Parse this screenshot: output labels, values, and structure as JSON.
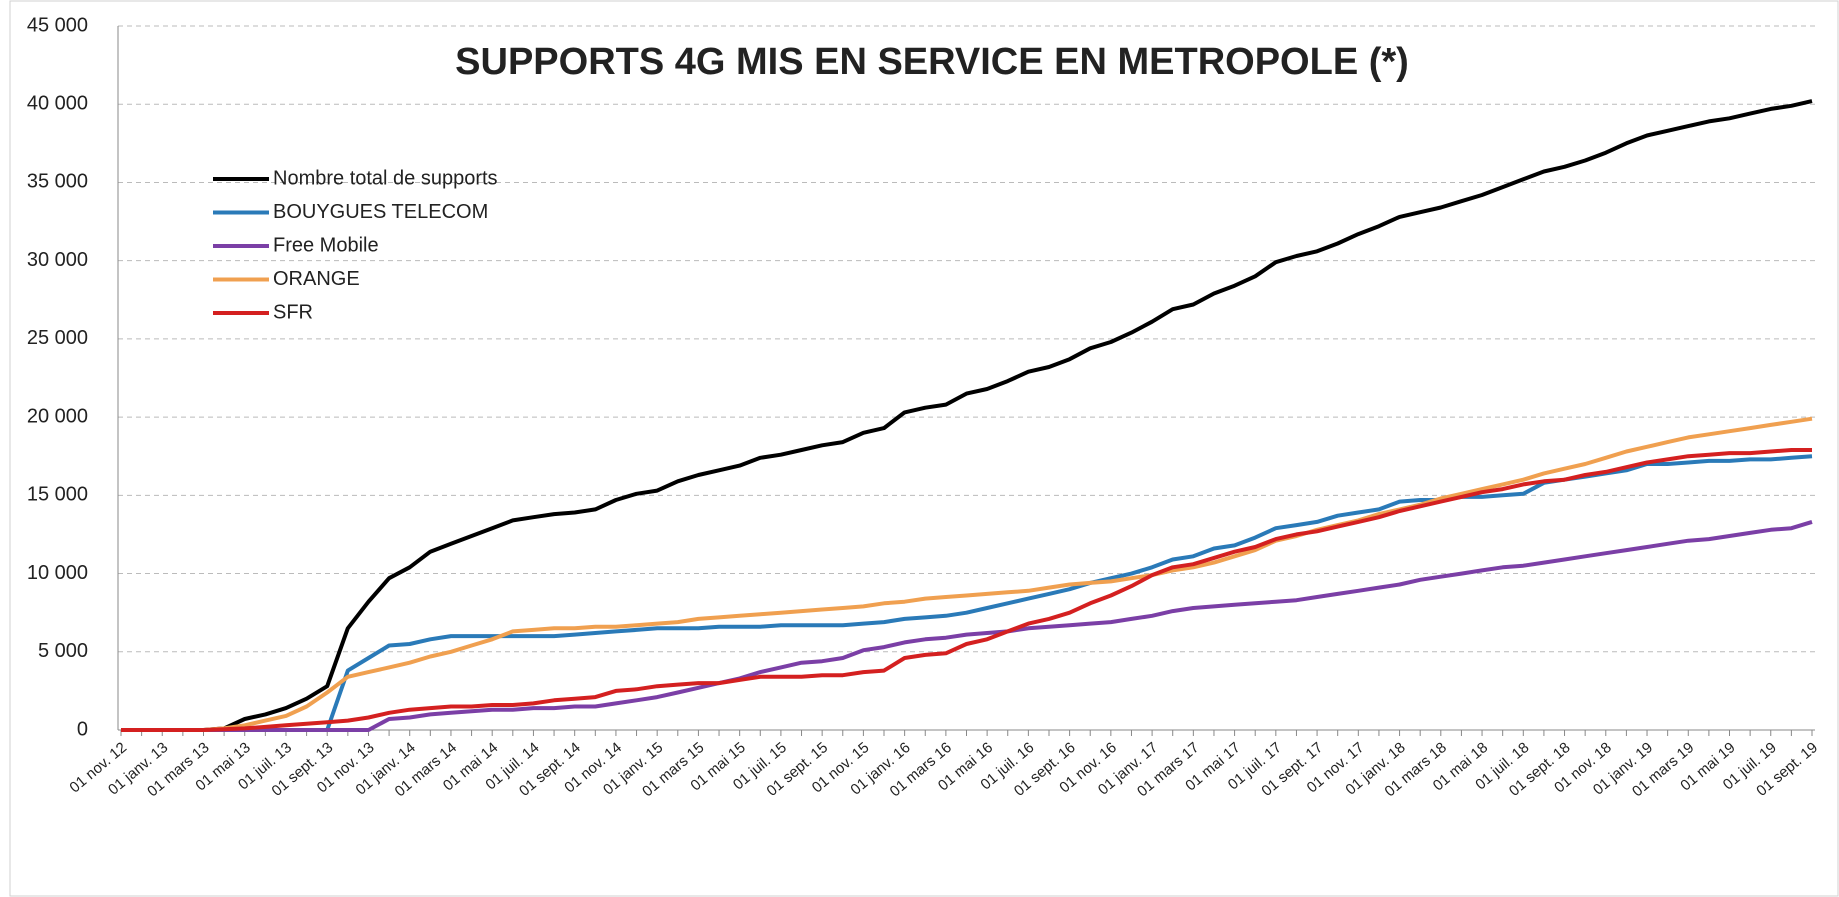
{
  "chart_data": {
    "type": "line",
    "title": "SUPPORTS 4G MIS EN SERVICE EN METROPOLE (*)",
    "categories": [
      "01 nov. 12",
      null,
      "01 janv. 13",
      null,
      "01 mars 13",
      null,
      "01 mai 13",
      null,
      "01 juil. 13",
      null,
      "01 sept. 13",
      null,
      "01 nov. 13",
      null,
      "01 janv. 14",
      null,
      "01 mars 14",
      null,
      "01 mai 14",
      null,
      "01 juil. 14",
      null,
      "01 sept. 14",
      null,
      "01 nov. 14",
      null,
      "01 janv. 15",
      null,
      "01 mars 15",
      null,
      "01 mai 15",
      null,
      "01 juil. 15",
      null,
      "01 sept. 15",
      null,
      "01 nov. 15",
      null,
      "01 janv. 16",
      null,
      "01 mars 16",
      null,
      "01 mai 16",
      null,
      "01 juil. 16",
      null,
      "01 sept. 16",
      null,
      "01 nov. 16",
      null,
      "01 janv. 17",
      null,
      "01 mars 17",
      null,
      "01 mai 17",
      null,
      "01 juil. 17",
      null,
      "01 sept. 17",
      null,
      "01 nov. 17",
      null,
      "01 janv. 18",
      null,
      "01 mars 18",
      null,
      "01 mai 18",
      null,
      "01 juil. 18",
      null,
      "01 sept. 18",
      null,
      "01 nov. 18",
      null,
      "01 janv. 19",
      null,
      "01 mars 19",
      null,
      "01 mai 19",
      null,
      "01 juil. 19",
      null,
      "01 sept. 19"
    ],
    "series": [
      {
        "name": "Nombre total de supports",
        "color": "#000000",
        "values": [
          0,
          0,
          0,
          0,
          0,
          100,
          700,
          1000,
          1400,
          2000,
          2800,
          6500,
          8200,
          9700,
          10400,
          11400,
          11900,
          12400,
          12900,
          13400,
          13600,
          13800,
          13900,
          14100,
          14700,
          15100,
          15300,
          15900,
          16300,
          16600,
          16900,
          17400,
          17600,
          17900,
          18200,
          18400,
          19000,
          19300,
          20300,
          20600,
          20800,
          21500,
          21800,
          22300,
          22900,
          23200,
          23700,
          24400,
          24800,
          25400,
          26100,
          26900,
          27200,
          27900,
          28400,
          29000,
          29900,
          30300,
          30600,
          31100,
          31700,
          32200,
          32800,
          33100,
          33400,
          33800,
          34200,
          34700,
          35200,
          35700,
          36000,
          36400,
          36900,
          37500,
          38000,
          38300,
          38600,
          38900,
          39100,
          39400,
          39700,
          39900,
          40200
        ]
      },
      {
        "name": "BOUYGUES TELECOM",
        "color": "#2a7ab8",
        "values": [
          0,
          0,
          0,
          0,
          0,
          0,
          0,
          0,
          0,
          0,
          0,
          3800,
          4600,
          5400,
          5500,
          5800,
          6000,
          6000,
          6000,
          6000,
          6000,
          6000,
          6100,
          6200,
          6300,
          6400,
          6500,
          6500,
          6500,
          6600,
          6600,
          6600,
          6700,
          6700,
          6700,
          6700,
          6800,
          6900,
          7100,
          7200,
          7300,
          7500,
          7800,
          8100,
          8400,
          8700,
          9000,
          9400,
          9700,
          10000,
          10400,
          10900,
          11100,
          11600,
          11800,
          12300,
          12900,
          13100,
          13300,
          13700,
          13900,
          14100,
          14600,
          14700,
          14700,
          14900,
          14900,
          15000,
          15100,
          15800,
          16000,
          16200,
          16400,
          16600,
          17000,
          17000,
          17100,
          17200,
          17200,
          17300,
          17300,
          17400,
          17500
        ]
      },
      {
        "name": "Free Mobile",
        "color": "#7b3fa6",
        "values": [
          0,
          0,
          0,
          0,
          0,
          0,
          0,
          0,
          0,
          0,
          0,
          0,
          0,
          700,
          800,
          1000,
          1100,
          1200,
          1300,
          1300,
          1400,
          1400,
          1500,
          1500,
          1700,
          1900,
          2100,
          2400,
          2700,
          3000,
          3300,
          3700,
          4000,
          4300,
          4400,
          4600,
          5100,
          5300,
          5600,
          5800,
          5900,
          6100,
          6200,
          6300,
          6500,
          6600,
          6700,
          6800,
          6900,
          7100,
          7300,
          7600,
          7800,
          7900,
          8000,
          8100,
          8200,
          8300,
          8500,
          8700,
          8900,
          9100,
          9300,
          9600,
          9800,
          10000,
          10200,
          10400,
          10500,
          10700,
          10900,
          11100,
          11300,
          11500,
          11700,
          11900,
          12100,
          12200,
          12400,
          12600,
          12800,
          12900,
          13300
        ]
      },
      {
        "name": "ORANGE",
        "color": "#f0a050",
        "values": [
          0,
          0,
          0,
          0,
          0,
          100,
          300,
          600,
          900,
          1500,
          2400,
          3400,
          3700,
          4000,
          4300,
          4700,
          5000,
          5400,
          5800,
          6300,
          6400,
          6500,
          6500,
          6600,
          6600,
          6700,
          6800,
          6900,
          7100,
          7200,
          7300,
          7400,
          7500,
          7600,
          7700,
          7800,
          7900,
          8100,
          8200,
          8400,
          8500,
          8600,
          8700,
          8800,
          8900,
          9100,
          9300,
          9400,
          9500,
          9700,
          9900,
          10200,
          10400,
          10700,
          11100,
          11500,
          12100,
          12400,
          12800,
          13100,
          13400,
          13800,
          14100,
          14400,
          14800,
          15100,
          15400,
          15700,
          16000,
          16400,
          16700,
          17000,
          17400,
          17800,
          18100,
          18400,
          18700,
          18900,
          19100,
          19300,
          19500,
          19700,
          19900
        ]
      },
      {
        "name": "SFR",
        "color": "#d42020",
        "values": [
          0,
          0,
          0,
          0,
          0,
          50,
          100,
          200,
          300,
          400,
          500,
          600,
          800,
          1100,
          1300,
          1400,
          1500,
          1500,
          1600,
          1600,
          1700,
          1900,
          2000,
          2100,
          2500,
          2600,
          2800,
          2900,
          3000,
          3000,
          3200,
          3400,
          3400,
          3400,
          3500,
          3500,
          3700,
          3800,
          4600,
          4800,
          4900,
          5500,
          5800,
          6300,
          6800,
          7100,
          7500,
          8100,
          8600,
          9200,
          9900,
          10400,
          10600,
          11000,
          11400,
          11700,
          12200,
          12500,
          12700,
          13000,
          13300,
          13600,
          14000,
          14300,
          14600,
          14900,
          15200,
          15400,
          15700,
          15900,
          16000,
          16300,
          16500,
          16800,
          17100,
          17300,
          17500,
          17600,
          17700,
          17700,
          17800,
          17900,
          17900
        ]
      }
    ],
    "ylim": [
      0,
      45000
    ],
    "yticks": [
      0,
      {
        "value": 5000,
        "label": "5 000"
      },
      {
        "value": 10000,
        "label": "10 000"
      },
      {
        "value": 15000,
        "label": "15 000"
      },
      {
        "value": 20000,
        "label": "20 000"
      },
      {
        "value": 25000,
        "label": "25 000"
      },
      {
        "value": 30000,
        "label": "30 000"
      },
      {
        "value": 35000,
        "label": "35 000"
      },
      {
        "value": 40000,
        "label": "40 000"
      },
      {
        "value": 45000,
        "label": "45 000"
      }
    ],
    "grid": true,
    "legend": "upper left"
  }
}
